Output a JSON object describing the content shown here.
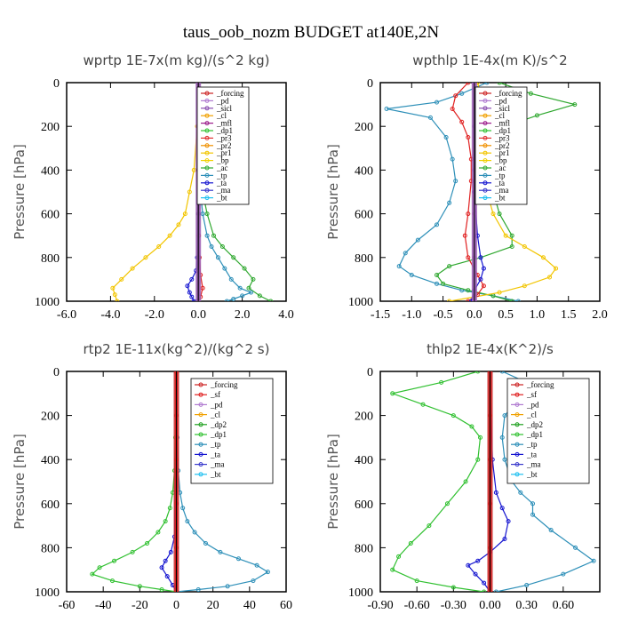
{
  "title": "taus_oob_nozm  BUDGET at140E,2N",
  "chart_data": [
    {
      "type": "line",
      "title": "wprtp  1E-7x(m kg)/(s^2 kg)",
      "ylabel": "Pressure [hPa]",
      "xlim": [
        -6.0,
        4.0
      ],
      "ylim": [
        1000,
        0
      ],
      "xticks": [
        "-6.0",
        "-4.0",
        "-2.0",
        "0.0",
        "2.0",
        "4.0"
      ],
      "xtick_values": [
        -6,
        -4,
        -2,
        0,
        2,
        4
      ],
      "yticks": [
        "0",
        "200",
        "400",
        "600",
        "800",
        "1000"
      ],
      "ytick_values": [
        0,
        200,
        400,
        600,
        800,
        1000
      ],
      "legend": [
        "_forcing",
        "_pd",
        "_sicl",
        "_cl",
        "_mfl",
        "_dp1",
        "_pr3",
        "_pr2",
        "_pr1",
        "_bp",
        "_ac",
        "_tp",
        "_ta",
        "_ma",
        "_bt"
      ],
      "legend_position": "top-right",
      "series": [
        {
          "name": "_pr1",
          "color": "#f2c500",
          "x": [
            0,
            -0.05,
            -0.2,
            -0.4,
            -0.6,
            -0.9,
            -1.3,
            -1.8,
            -2.4,
            -3.0,
            -3.5,
            -3.9,
            -3.8,
            -3.7
          ],
          "y": [
            0,
            200,
            400,
            500,
            600,
            650,
            700,
            750,
            800,
            850,
            900,
            940,
            970,
            1000
          ]
        },
        {
          "name": "_ac",
          "color": "#30a830",
          "x": [
            0,
            0.05,
            0.1,
            0.2,
            0.4,
            0.7,
            1.1,
            1.6,
            2.1,
            2.5,
            2.3,
            2.8,
            3.3
          ],
          "y": [
            0,
            200,
            400,
            500,
            600,
            700,
            750,
            800,
            850,
            900,
            940,
            975,
            1000
          ]
        },
        {
          "name": "_tp",
          "color": "#2d8fb8",
          "x": [
            0,
            0.02,
            0.05,
            0.1,
            0.2,
            0.4,
            0.6,
            0.9,
            1.2,
            1.5,
            1.9,
            2.4,
            2.0,
            1.6,
            1.3
          ],
          "y": [
            0,
            200,
            400,
            500,
            600,
            700,
            750,
            800,
            850,
            900,
            940,
            960,
            975,
            990,
            1000
          ]
        },
        {
          "name": "_ta",
          "color": "#1515d0",
          "x": [
            0,
            0,
            -0.05,
            -0.1,
            -0.3,
            -0.5,
            -0.4,
            -0.3,
            -0.2
          ],
          "y": [
            0,
            400,
            800,
            860,
            900,
            930,
            960,
            980,
            1000
          ]
        },
        {
          "name": "_dp1",
          "color": "#e02020",
          "x": [
            0,
            0,
            0.02,
            0.05,
            0.1,
            0.2,
            0.1,
            0.0
          ],
          "y": [
            0,
            400,
            700,
            800,
            880,
            940,
            980,
            1000
          ]
        },
        {
          "name": "_bt",
          "color": "#111111",
          "x": [
            0,
            0,
            0,
            0,
            0,
            0
          ],
          "y": [
            0,
            200,
            400,
            600,
            800,
            1000
          ]
        }
      ]
    },
    {
      "type": "line",
      "title": "wpthlp  1E-4x(m K)/s^2",
      "ylabel": "Pressure [hPa]",
      "xlim": [
        -1.5,
        2.0
      ],
      "ylim": [
        1000,
        0
      ],
      "xticks": [
        "-1.5",
        "-1.0",
        "-0.5",
        "0.0",
        "0.5",
        "1.0",
        "1.5",
        "2.0"
      ],
      "xtick_values": [
        -1.5,
        -1.0,
        -0.5,
        0.0,
        0.5,
        1.0,
        1.5,
        2.0
      ],
      "yticks": [
        "0",
        "200",
        "400",
        "600",
        "800",
        "1000"
      ],
      "ytick_values": [
        0,
        200,
        400,
        600,
        800,
        1000
      ],
      "legend": [
        "_forcing",
        "_pd",
        "_sicl",
        "_cl",
        "_mfl",
        "_dp1",
        "_pr3",
        "_pr2",
        "_pr1",
        "_bp",
        "_ac",
        "_tp",
        "_ta",
        "_ma",
        "_bt"
      ],
      "legend_position": "top-right",
      "series": [
        {
          "name": "_tp",
          "color": "#2d8fb8",
          "x": [
            0.2,
            -0.2,
            -0.6,
            -1.4,
            -0.7,
            -0.45,
            -0.35,
            -0.3,
            -0.4,
            -0.6,
            -0.9,
            -1.1,
            -1.2,
            -1.0,
            -0.6,
            -0.2,
            0.3,
            0.7
          ],
          "y": [
            0,
            50,
            90,
            120,
            160,
            250,
            350,
            450,
            550,
            650,
            720,
            780,
            840,
            880,
            920,
            950,
            975,
            1000
          ]
        },
        {
          "name": "_ac",
          "color": "#30a830",
          "x": [
            0.4,
            0.9,
            1.6,
            1.0,
            0.5,
            0.35,
            0.3,
            0.3,
            0.4,
            0.6,
            0.6,
            0.1,
            -0.4,
            -0.6,
            -0.5,
            -0.1,
            0.3,
            0.6
          ],
          "y": [
            0,
            50,
            100,
            150,
            200,
            300,
            400,
            500,
            600,
            700,
            750,
            800,
            840,
            880,
            920,
            950,
            975,
            1000
          ]
        },
        {
          "name": "_pr1",
          "color": "#f2c500",
          "x": [
            0.05,
            0.15,
            0.1,
            0.1,
            0.15,
            0.2,
            0.3,
            0.5,
            0.8,
            1.1,
            1.3,
            1.2,
            0.8,
            0.4,
            0.0,
            -0.4
          ],
          "y": [
            0,
            100,
            200,
            300,
            400,
            500,
            600,
            700,
            750,
            800,
            850,
            890,
            930,
            960,
            980,
            1000
          ]
        },
        {
          "name": "_dp1",
          "color": "#e02020",
          "x": [
            -0.1,
            -0.3,
            -0.35,
            -0.2,
            -0.1,
            -0.05,
            -0.05,
            -0.1,
            -0.15,
            -0.1,
            0.05,
            0.15,
            0.05,
            -0.1
          ],
          "y": [
            0,
            60,
            120,
            180,
            250,
            350,
            450,
            600,
            700,
            800,
            880,
            930,
            970,
            1000
          ]
        },
        {
          "name": "_ta",
          "color": "#1515d0",
          "x": [
            0,
            0,
            0.05,
            0.1,
            0.15,
            0.1,
            0.0,
            -0.05
          ],
          "y": [
            0,
            500,
            700,
            800,
            850,
            900,
            950,
            1000
          ]
        },
        {
          "name": "_bt",
          "color": "#9c5fb5",
          "x": [
            0,
            0,
            0,
            0,
            0,
            0
          ],
          "y": [
            0,
            200,
            400,
            600,
            800,
            1000
          ]
        }
      ]
    },
    {
      "type": "line",
      "title": "rtp2  1E-11x(kg^2)/(kg^2 s)",
      "ylabel": "Pressure [hPa]",
      "xlim": [
        -60,
        60
      ],
      "ylim": [
        1000,
        0
      ],
      "xticks": [
        "-60",
        "-40",
        "-20",
        "0",
        "20",
        "40",
        "60"
      ],
      "xtick_values": [
        -60,
        -40,
        -20,
        0,
        20,
        40,
        60
      ],
      "yticks": [
        "0",
        "200",
        "400",
        "600",
        "800",
        "1000"
      ],
      "ytick_values": [
        0,
        200,
        400,
        600,
        800,
        1000
      ],
      "legend": [
        "_forcing",
        "_sf",
        "_pd",
        "_cl",
        "_dp2",
        "_dp1",
        "_tp",
        "_ta",
        "_ma",
        "_bt"
      ],
      "legend_position": "top-right",
      "series": [
        {
          "name": "_dp1",
          "color": "#30c030",
          "x": [
            0,
            -0.5,
            -1,
            -2,
            -3.5,
            -6,
            -10,
            -16,
            -24,
            -34,
            -42,
            -46,
            -35,
            -20,
            -8,
            0
          ],
          "y": [
            0,
            300,
            450,
            550,
            620,
            680,
            730,
            780,
            820,
            860,
            890,
            920,
            950,
            975,
            990,
            1000
          ]
        },
        {
          "name": "_tp",
          "color": "#2d8fb8",
          "x": [
            0,
            0.5,
            1,
            2,
            3.5,
            6,
            10,
            16,
            24,
            34,
            44,
            50,
            42,
            28,
            12,
            0
          ],
          "y": [
            0,
            300,
            450,
            550,
            620,
            680,
            730,
            780,
            820,
            850,
            880,
            910,
            950,
            975,
            990,
            1000
          ]
        },
        {
          "name": "_ta",
          "color": "#1515d0",
          "x": [
            0,
            -1,
            -3,
            -6,
            -8,
            -5,
            -2,
            0
          ],
          "y": [
            0,
            750,
            820,
            860,
            890,
            930,
            970,
            1000
          ]
        },
        {
          "name": "_forcing",
          "color": "#cc2222",
          "x": [
            0,
            0,
            0,
            0,
            0,
            0
          ],
          "y": [
            0,
            200,
            400,
            600,
            800,
            1000
          ]
        }
      ]
    },
    {
      "type": "line",
      "title": "thlp2  1E-4x(K^2)/s",
      "ylabel": "Pressure [hPa]",
      "xlim": [
        -0.9,
        0.9
      ],
      "ylim": [
        1000,
        0
      ],
      "xticks": [
        "-0.90",
        "-0.60",
        "-0.30",
        "0.00",
        "0.30",
        "0.60"
      ],
      "xtick_values": [
        -0.9,
        -0.6,
        -0.3,
        0.0,
        0.3,
        0.6
      ],
      "yticks": [
        "0",
        "200",
        "400",
        "600",
        "800",
        "1000"
      ],
      "ytick_values": [
        0,
        200,
        400,
        600,
        800,
        1000
      ],
      "legend": [
        "_forcing",
        "_sf",
        "_pd",
        "_cl",
        "_dp2",
        "_dp1",
        "_tp",
        "_ta",
        "_ma",
        "_bt"
      ],
      "legend_position": "top-right",
      "series": [
        {
          "name": "_dp1",
          "color": "#30c030",
          "x": [
            -0.1,
            -0.4,
            -0.8,
            -0.55,
            -0.3,
            -0.15,
            -0.08,
            -0.1,
            -0.2,
            -0.35,
            -0.5,
            -0.65,
            -0.75,
            -0.8,
            -0.6,
            -0.3,
            -0.05
          ],
          "y": [
            0,
            50,
            100,
            150,
            200,
            250,
            300,
            400,
            500,
            600,
            700,
            780,
            840,
            900,
            950,
            980,
            1000
          ]
        },
        {
          "name": "_tp",
          "color": "#2d8fb8",
          "x": [
            0.1,
            0.3,
            0.6,
            0.2,
            0.12,
            0.1,
            0.12,
            0.18,
            0.25,
            0.35,
            0.35,
            0.5,
            0.7,
            0.85,
            0.6,
            0.3,
            0.05
          ],
          "y": [
            0,
            50,
            100,
            150,
            200,
            300,
            400,
            500,
            550,
            600,
            650,
            720,
            800,
            860,
            920,
            970,
            1000
          ]
        },
        {
          "name": "_ta",
          "color": "#1515d0",
          "x": [
            0,
            0.02,
            0.05,
            0.1,
            0.15,
            0.12,
            0.0,
            -0.1,
            -0.18,
            -0.12,
            -0.05,
            0
          ],
          "y": [
            0,
            400,
            550,
            620,
            680,
            760,
            820,
            860,
            880,
            920,
            960,
            1000
          ]
        },
        {
          "name": "_forcing",
          "color": "#cc2222",
          "x": [
            0,
            0,
            0,
            0,
            0,
            0
          ],
          "y": [
            0,
            200,
            400,
            600,
            800,
            1000
          ]
        }
      ]
    }
  ]
}
